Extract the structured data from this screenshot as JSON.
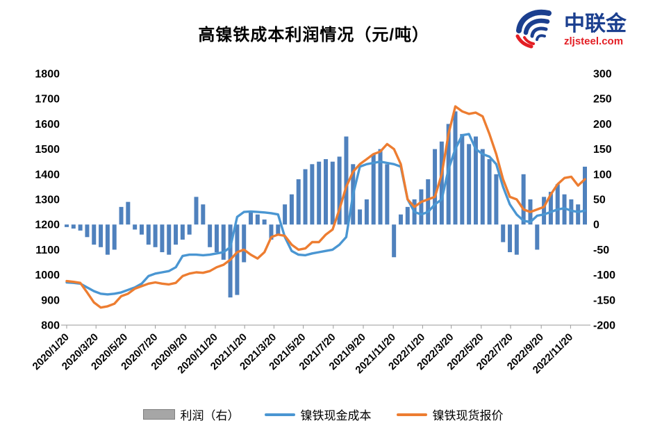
{
  "logo": {
    "name": "中联金",
    "url": "zljsteel.com",
    "name_color": "#1b3f8f",
    "url_color": "#e31e24"
  },
  "chart_data": {
    "type": "combo",
    "title": "高镍铁成本利润情况（元/吨）",
    "n_points": 77,
    "left_axis": {
      "min": 800,
      "max": 1800,
      "step": 100
    },
    "right_axis": {
      "min": -200,
      "max": 300,
      "step": 50
    },
    "grid": "off",
    "legend_position": "bottom",
    "x_tick_labels": [
      "2020/1/20",
      "2020/3/20",
      "2020/5/20",
      "2020/7/20",
      "2020/9/20",
      "2020/11/20",
      "2021/1/20",
      "2021/3/20",
      "2021/5/20",
      "2021/7/20",
      "2021/9/20",
      "2021/11/20",
      "2022/1/20",
      "2022/3/20",
      "2022/5/20",
      "2022/7/20",
      "2022/9/20",
      "2022/11/20"
    ],
    "x_tick_positions": [
      0,
      4.3,
      8.6,
      13,
      17.4,
      21.8,
      26.1,
      30.4,
      34.7,
      39.1,
      43.5,
      47.9,
      52.2,
      56.4,
      60.8,
      65.1,
      69.6,
      73.9
    ],
    "series": [
      {
        "name": "利润（右）",
        "type": "bar",
        "axis": "right",
        "color": "#4f81bd",
        "legend_swatch": "#a6a6a6",
        "values": [
          -5,
          -8,
          -12,
          -25,
          -40,
          -45,
          -60,
          -50,
          35,
          45,
          -10,
          -20,
          -40,
          -45,
          -55,
          -60,
          -40,
          -30,
          -20,
          55,
          40,
          -45,
          -55,
          -70,
          -145,
          -140,
          -75,
          25,
          20,
          10,
          -30,
          -20,
          40,
          60,
          90,
          110,
          120,
          125,
          130,
          125,
          135,
          175,
          120,
          30,
          50,
          140,
          150,
          120,
          -65,
          20,
          35,
          50,
          70,
          90,
          150,
          165,
          200,
          225,
          180,
          160,
          175,
          150,
          130,
          100,
          -35,
          -55,
          -60,
          100,
          50,
          -50,
          55,
          65,
          80,
          60,
          50,
          40,
          115
        ]
      },
      {
        "name": "镍铁现金成本",
        "type": "line",
        "axis": "left",
        "color": "#4a96d2",
        "values": [
          970,
          968,
          965,
          950,
          935,
          925,
          922,
          925,
          930,
          940,
          950,
          965,
          995,
          1005,
          1010,
          1015,
          1030,
          1075,
          1080,
          1080,
          1078,
          1080,
          1085,
          1090,
          1110,
          1230,
          1250,
          1252,
          1250,
          1248,
          1245,
          1240,
          1150,
          1095,
          1080,
          1078,
          1085,
          1090,
          1095,
          1100,
          1120,
          1150,
          1320,
          1430,
          1440,
          1445,
          1450,
          1445,
          1440,
          1430,
          1300,
          1250,
          1240,
          1250,
          1280,
          1300,
          1420,
          1500,
          1555,
          1560,
          1500,
          1480,
          1470,
          1440,
          1350,
          1280,
          1240,
          1215,
          1210,
          1235,
          1240,
          1250,
          1260,
          1265,
          1255,
          1250,
          1255
        ]
      },
      {
        "name": "镍铁现货报价",
        "type": "line",
        "axis": "left",
        "color": "#ed7d31",
        "values": [
          975,
          972,
          968,
          930,
          890,
          870,
          875,
          885,
          915,
          925,
          945,
          955,
          965,
          970,
          965,
          962,
          968,
          995,
          1005,
          1010,
          1008,
          1015,
          1030,
          1040,
          1060,
          1090,
          1100,
          1080,
          1065,
          1090,
          1150,
          1160,
          1155,
          1120,
          1100,
          1105,
          1130,
          1130,
          1160,
          1180,
          1260,
          1350,
          1410,
          1440,
          1460,
          1480,
          1490,
          1520,
          1500,
          1440,
          1300,
          1270,
          1290,
          1300,
          1310,
          1400,
          1560,
          1670,
          1650,
          1640,
          1645,
          1630,
          1560,
          1480,
          1380,
          1310,
          1300,
          1260,
          1250,
          1260,
          1270,
          1320,
          1360,
          1385,
          1390,
          1355,
          1380
        ]
      }
    ]
  }
}
